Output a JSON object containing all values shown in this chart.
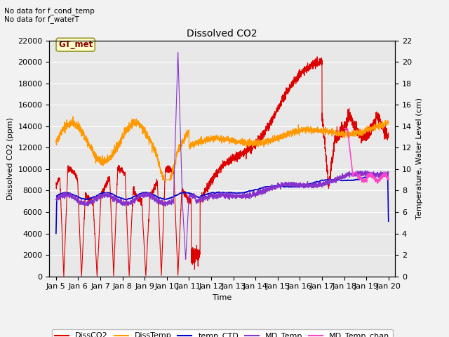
{
  "title": "Dissolved CO2",
  "xlabel": "Time",
  "ylabel_left": "Dissolved CO2 (ppm)",
  "ylabel_right": "Temperature, Water Level (cm)",
  "annotation_text": "No data for f_cond_temp\nNo data for f_waterT",
  "gt_met_label": "GT_met",
  "xlim_start": 4.7,
  "xlim_end": 20.3,
  "ylim_left": [
    0,
    22000
  ],
  "ylim_right": [
    0,
    22
  ],
  "yticks_left": [
    0,
    2000,
    4000,
    6000,
    8000,
    10000,
    12000,
    14000,
    16000,
    18000,
    20000,
    22000
  ],
  "yticks_right": [
    0,
    2,
    4,
    6,
    8,
    10,
    12,
    14,
    16,
    18,
    20,
    22
  ],
  "xtick_labels": [
    "Jan 5",
    "Jan 6",
    "Jan 7",
    "Jan 8",
    "Jan 9",
    "Jan 10",
    "Jan 11",
    "Jan 12",
    "Jan 13",
    "Jan 14",
    "Jan 15",
    "Jan 16",
    "Jan 17",
    "Jan 18",
    "Jan 19",
    "Jan 20"
  ],
  "xtick_positions": [
    5,
    6,
    7,
    8,
    9,
    10,
    11,
    12,
    13,
    14,
    15,
    16,
    17,
    18,
    19,
    20
  ],
  "series_colors": {
    "DissCO2": "#dd0000",
    "DissTemp": "#ff9900",
    "temp_CTD": "#0000cc",
    "MD_Temp": "#8833cc",
    "MD_Temp_chan": "#ff44cc"
  },
  "legend_labels": [
    "DissCO2",
    "DissTemp",
    "temp_CTD",
    "MD_Temp",
    "MD_Temp_chan"
  ],
  "plot_bg_color": "#e8e8e8",
  "fig_bg_color": "#f2f2f2",
  "grid_color": "#ffffff",
  "font_size": 8
}
